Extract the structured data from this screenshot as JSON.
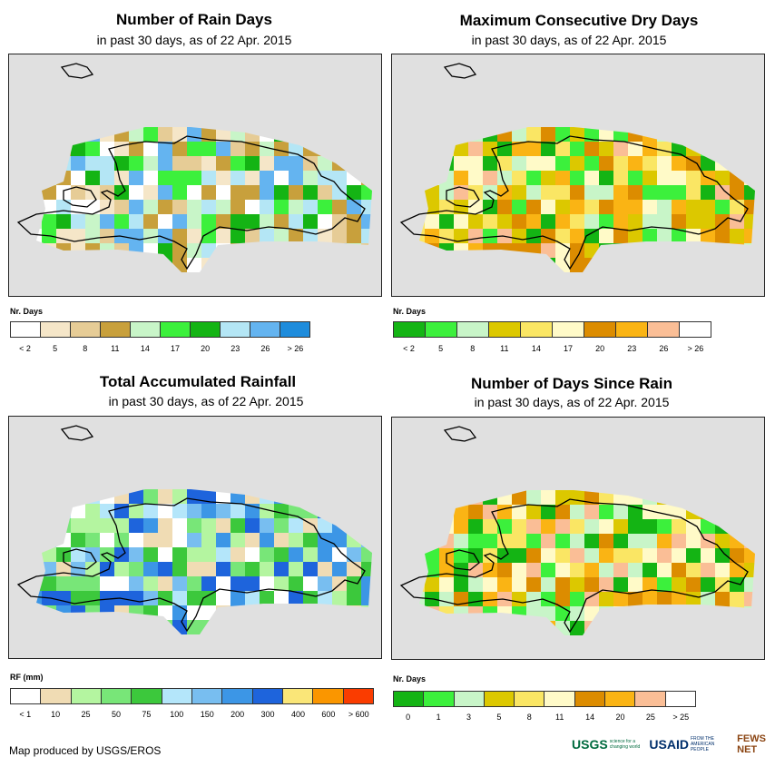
{
  "panels": [
    {
      "title": "Number of Rain Days",
      "subtitle": "in past 30 days, as of 22 Apr. 2015",
      "legend": {
        "title": "Nr. Days",
        "colors": [
          "#ffffff",
          "#f5e6c8",
          "#e6cc96",
          "#c8a03c",
          "#c8f5c8",
          "#3cf03c",
          "#14b414",
          "#b4e6f5",
          "#64b4f0",
          "#1e8cdc"
        ],
        "labels": [
          "< 2",
          "5",
          "8",
          "11",
          "14",
          "17",
          "20",
          "23",
          "26",
          "> 26"
        ]
      }
    },
    {
      "title": "Maximum Consecutive Dry Days",
      "subtitle": "in past 30 days, as of 22 Apr. 2015",
      "legend": {
        "title": "Nr. Days",
        "colors": [
          "#14b414",
          "#3cf03c",
          "#c8f5c8",
          "#dcc800",
          "#fae664",
          "#fffac8",
          "#dc8c00",
          "#fab414",
          "#fabe96",
          "#ffffff"
        ],
        "labels": [
          "< 2",
          "5",
          "8",
          "11",
          "14",
          "17",
          "20",
          "23",
          "26",
          "> 26"
        ]
      }
    },
    {
      "title": "Total Accumulated Rainfall",
      "subtitle": "in past 30 days, as of 22 Apr. 2015",
      "legend": {
        "title": "RF (mm)",
        "colors": [
          "#ffffff",
          "#f0dcb4",
          "#b4f5a0",
          "#78e678",
          "#3cc83c",
          "#b4e6fa",
          "#78bef0",
          "#3c96e6",
          "#1e64dc",
          "#fae678",
          "#fa9600",
          "#fa3c00"
        ],
        "labels": [
          "< 1",
          "10",
          "25",
          "50",
          "75",
          "100",
          "150",
          "200",
          "300",
          "400",
          "600",
          "> 600"
        ]
      }
    },
    {
      "title": "Number of Days Since Rain",
      "subtitle": "in past 30 days, as of 22 Apr. 2015",
      "legend": {
        "title": "Nr. Days",
        "colors": [
          "#14b414",
          "#3cf03c",
          "#c8f5c8",
          "#dcc800",
          "#fae664",
          "#fffac8",
          "#dc8c00",
          "#fab414",
          "#fabe96",
          "#ffffff"
        ],
        "labels": [
          "0",
          "1",
          "3",
          "5",
          "8",
          "11",
          "14",
          "20",
          "25",
          "> 25"
        ]
      }
    }
  ],
  "credit": "Map produced by USGS/EROS",
  "logos": {
    "usgs": "USGS",
    "usgs_tag": "science for a changing world",
    "usaid": "USAID",
    "usaid_tag": "FROM THE AMERICAN PEOPLE",
    "fews": "FEWS NET"
  }
}
